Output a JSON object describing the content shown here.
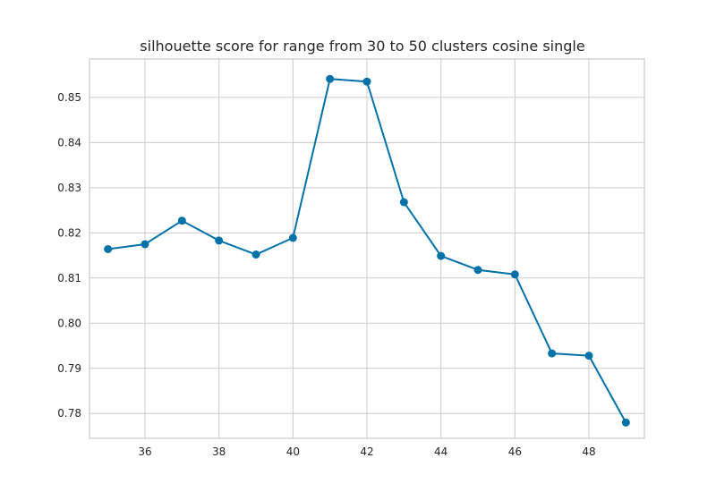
{
  "chart_data": {
    "type": "line",
    "title": "silhouette score for range from 30 to 50 clusters cosine single",
    "xlabel": "",
    "ylabel": "",
    "xlim": [
      34.5,
      49.5
    ],
    "ylim": [
      0.7745,
      0.8585
    ],
    "xticks": [
      36,
      38,
      40,
      42,
      44,
      46,
      48
    ],
    "yticks": [
      0.78,
      0.79,
      0.8,
      0.81,
      0.82,
      0.83,
      0.84,
      0.85
    ],
    "xtick_labels": [
      "36",
      "38",
      "40",
      "42",
      "44",
      "46",
      "48"
    ],
    "ytick_labels": [
      "0.78",
      "0.79",
      "0.80",
      "0.81",
      "0.82",
      "0.83",
      "0.84",
      "0.85"
    ],
    "grid": true,
    "legend": false,
    "series": [
      {
        "color": "#0072a8",
        "marker": "circle",
        "x": [
          35,
          36,
          37,
          38,
          39,
          40,
          41,
          42,
          43,
          44,
          45,
          46,
          47,
          48,
          49
        ],
        "y": [
          0.8164,
          0.8175,
          0.8227,
          0.8183,
          0.8152,
          0.8189,
          0.8541,
          0.8535,
          0.8268,
          0.8149,
          0.8118,
          0.8108,
          0.7933,
          0.7928,
          0.778
        ]
      }
    ]
  }
}
